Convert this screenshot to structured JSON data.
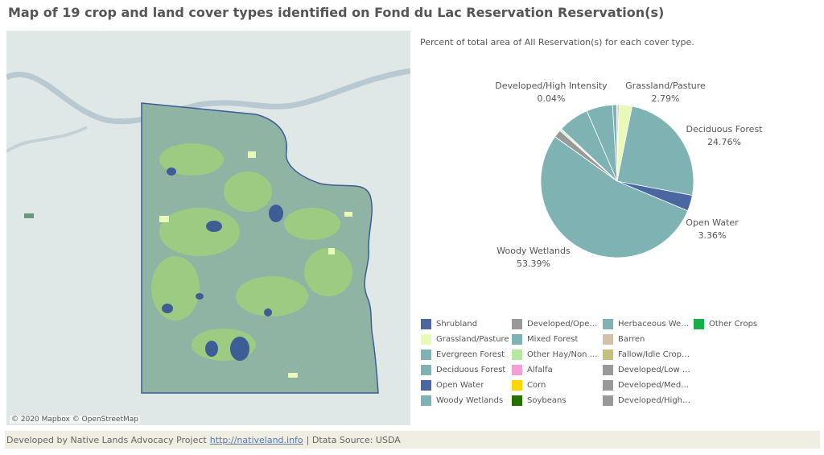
{
  "title": "Map of 19 crop and land cover types identified on Fond du Lac Reservation Reservation(s)",
  "map": {
    "attribution": "© 2020 Mapbox  © OpenStreetMap"
  },
  "footer": {
    "prefix": "Developed by Native Lands Advocacy Project",
    "link": "http://nativeland.info",
    "suffix": "| Dtata Source: USDA"
  },
  "colors": {
    "map_bg": "#dfe8e6",
    "reservation_fill": "#8fb4a4",
    "forest_fill": "#9ccc82",
    "water_fill": "#3e5c96"
  },
  "chart_data": {
    "type": "pie",
    "title": "Percent of total area of All Reservation(s) for each cover type.",
    "slices": [
      {
        "name": "Other Crops",
        "value": 0.02,
        "color": "#1aae4b"
      },
      {
        "name": "Developed/High Intensity",
        "value": 0.04,
        "color": "#999999"
      },
      {
        "name": "Developed/Open Space",
        "value": 0.28,
        "color": "#999999"
      },
      {
        "name": "Grassland/Pasture",
        "value": 2.79,
        "color": "#e9f9b8"
      },
      {
        "name": "Deciduous Forest",
        "value": 24.76,
        "color": "#7fb2b2"
      },
      {
        "name": "Open Water",
        "value": 3.36,
        "color": "#4a67a2"
      },
      {
        "name": "Woody Wetlands",
        "value": 53.39,
        "color": "#7fb2b2"
      },
      {
        "name": "Shrubland",
        "value": 0.02,
        "color": "#4a67a2"
      },
      {
        "name": "Developed/Low Intensity",
        "value": 1.6,
        "color": "#999999"
      },
      {
        "name": "Other Hay/Non Alfalfa",
        "value": 0.3,
        "color": "#b6e8a2"
      },
      {
        "name": "Fallow/Idle Cropland",
        "value": 0.2,
        "color": "#c4c07e"
      },
      {
        "name": "Herbaceous Wetlands",
        "value": 6.5,
        "color": "#7fb2b2"
      },
      {
        "name": "Mixed Forest",
        "value": 5.5,
        "color": "#7fb2b2"
      },
      {
        "name": "Evergreen Forest",
        "value": 0.9,
        "color": "#7fb2b2"
      },
      {
        "name": "Barren",
        "value": 0.08,
        "color": "#d2c2a8"
      }
    ],
    "labels": [
      {
        "name": "Developed/High Intensity",
        "pct": "0.04%"
      },
      {
        "name": "Grassland/Pasture",
        "pct": "2.79%"
      },
      {
        "name": "Deciduous Forest",
        "pct": "24.76%"
      },
      {
        "name": "Open Water",
        "pct": "3.36%"
      },
      {
        "name": "Woody Wetlands",
        "pct": "53.39%"
      }
    ],
    "legend": [
      {
        "label": "Shrubland",
        "color": "#4a67a2"
      },
      {
        "label": "Grassland/Pasture",
        "color": "#e9f9b8"
      },
      {
        "label": "Evergreen Forest",
        "color": "#7fb2b2"
      },
      {
        "label": "Deciduous Forest",
        "color": "#7fb2b2"
      },
      {
        "label": "Open Water",
        "color": "#4a67a2"
      },
      {
        "label": "Woody Wetlands",
        "color": "#7fb2b2"
      },
      {
        "label": "Developed/Open ...",
        "color": "#999999"
      },
      {
        "label": "Mixed Forest",
        "color": "#7fb2b2"
      },
      {
        "label": "Other Hay/Non A...",
        "color": "#b6e8a2"
      },
      {
        "label": "Alfalfa",
        "color": "#f2a0d2"
      },
      {
        "label": "Corn",
        "color": "#ffd700"
      },
      {
        "label": "Soybeans",
        "color": "#267000"
      },
      {
        "label": "Herbaceous Wetl...",
        "color": "#7fb2b2"
      },
      {
        "label": "Barren",
        "color": "#d2c2a8"
      },
      {
        "label": "Fallow/Idle Cropl...",
        "color": "#c4c07e"
      },
      {
        "label": "Developed/Low I...",
        "color": "#999999"
      },
      {
        "label": "Developed/Med I...",
        "color": "#999999"
      },
      {
        "label": "Developed/High I...",
        "color": "#999999"
      },
      {
        "label": "Other Crops",
        "color": "#1aae4b"
      }
    ]
  }
}
